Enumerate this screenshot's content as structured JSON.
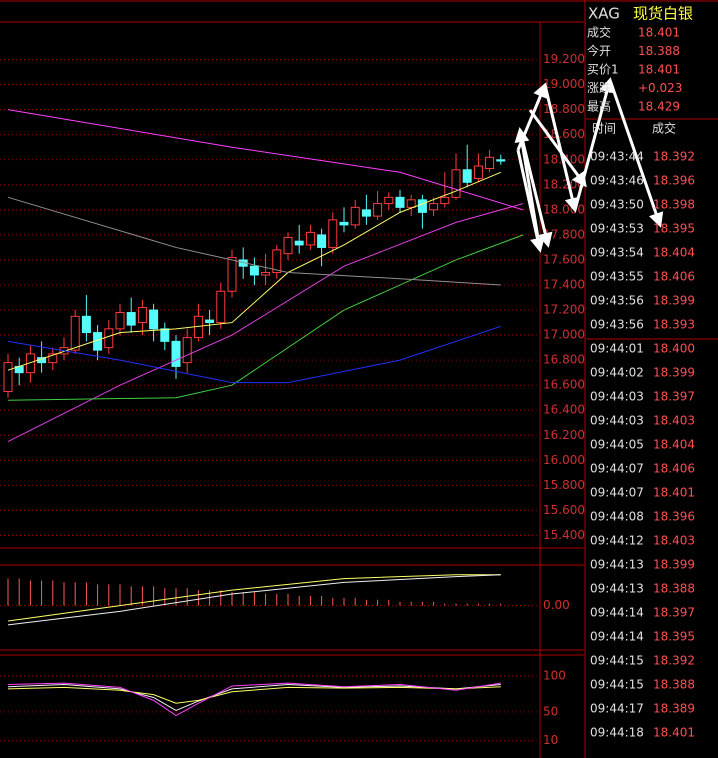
{
  "header": {
    "symbol": "XAG",
    "name": "现货白银"
  },
  "quote": [
    {
      "label": "成交",
      "value": "18.401"
    },
    {
      "label": "今开",
      "value": "18.388"
    },
    {
      "label": "买价1",
      "value": "18.401"
    },
    {
      "label": "涨跌",
      "value": "+0.023"
    },
    {
      "label": "最高",
      "value": "18.429"
    }
  ],
  "trades_header": [
    "时间",
    "成交"
  ],
  "trades": [
    [
      "09:43:44",
      "18.392"
    ],
    [
      "09:43:46",
      "18.396"
    ],
    [
      "09:43:50",
      "18.398"
    ],
    [
      "09:43:53",
      "18.395"
    ],
    [
      "09:43:54",
      "18.404"
    ],
    [
      "09:43:55",
      "18.406"
    ],
    [
      "09:43:56",
      "18.399"
    ],
    [
      "09:43:56",
      "18.393"
    ],
    [
      "09:44:01",
      "18.400"
    ],
    [
      "09:44:02",
      "18.399"
    ],
    [
      "09:44:03",
      "18.397"
    ],
    [
      "09:44:03",
      "18.403"
    ],
    [
      "09:44:05",
      "18.404"
    ],
    [
      "09:44:07",
      "18.406"
    ],
    [
      "09:44:07",
      "18.401"
    ],
    [
      "09:44:08",
      "18.396"
    ],
    [
      "09:44:12",
      "18.403"
    ],
    [
      "09:44:13",
      "18.399"
    ],
    [
      "09:44:13",
      "18.388"
    ],
    [
      "09:44:14",
      "18.397"
    ],
    [
      "09:44:14",
      "18.395"
    ],
    [
      "09:44:15",
      "18.392"
    ],
    [
      "09:44:15",
      "18.388"
    ],
    [
      "09:44:17",
      "18.389"
    ],
    [
      "09:44:18",
      "18.401"
    ]
  ],
  "chart_data": [
    {
      "type": "candlestick",
      "up_color": "#ff3c3c",
      "down_color": "#54fcfc",
      "ylim": [
        15.3,
        19.5
      ],
      "grid": true,
      "yticks": [
        {
          "value": 19.2,
          "label": "19.200"
        },
        {
          "value": 19.0,
          "label": "19.000"
        },
        {
          "value": 18.8,
          "label": "18.800"
        },
        {
          "value": 18.6,
          "label": "18.600"
        },
        {
          "value": 18.4,
          "label": "18.400"
        },
        {
          "value": 18.2,
          "label": "18.200"
        },
        {
          "value": 18.0,
          "label": "18.000"
        },
        {
          "value": 17.8,
          "label": "17.800"
        },
        {
          "value": 17.6,
          "label": "17.600"
        },
        {
          "value": 17.4,
          "label": "17.400"
        },
        {
          "value": 17.2,
          "label": "17.200"
        },
        {
          "value": 17.0,
          "label": "17.000"
        },
        {
          "value": 16.8,
          "label": "16.800"
        },
        {
          "value": 16.6,
          "label": "16.600"
        },
        {
          "value": 16.4,
          "label": "16.400"
        },
        {
          "value": 16.2,
          "label": "16.200"
        },
        {
          "value": 16.0,
          "label": "16.000"
        },
        {
          "value": 15.8,
          "label": "15.800"
        },
        {
          "value": 15.6,
          "label": "15.600"
        },
        {
          "value": 15.4,
          "label": "15.400"
        }
      ],
      "open": [
        16.55,
        16.75,
        16.7,
        16.82,
        16.78,
        16.85,
        16.88,
        17.15,
        17.02,
        16.9,
        17.05,
        17.18,
        17.1,
        17.2,
        17.05,
        16.95,
        16.78,
        16.98,
        17.12,
        17.1,
        17.35,
        17.6,
        17.55,
        17.48,
        17.5,
        17.65,
        17.75,
        17.72,
        17.8,
        17.7,
        17.9,
        17.88,
        18.0,
        17.95,
        18.05,
        18.1,
        18.02,
        18.08,
        18.0,
        18.05,
        18.1,
        18.32,
        18.25,
        18.33,
        18.4
      ],
      "close": [
        16.78,
        16.7,
        16.85,
        16.78,
        16.85,
        16.9,
        17.15,
        17.02,
        16.88,
        17.05,
        17.18,
        17.08,
        17.22,
        17.05,
        16.95,
        16.75,
        16.98,
        17.15,
        17.1,
        17.35,
        17.62,
        17.55,
        17.48,
        17.5,
        17.68,
        17.78,
        17.72,
        17.82,
        17.7,
        17.92,
        17.88,
        18.02,
        17.95,
        18.05,
        18.1,
        18.02,
        18.08,
        17.98,
        18.05,
        18.1,
        18.32,
        18.22,
        18.35,
        18.42,
        18.39
      ],
      "high": [
        16.85,
        16.82,
        16.92,
        16.95,
        16.9,
        16.98,
        17.2,
        17.32,
        17.08,
        17.12,
        17.25,
        17.3,
        17.28,
        17.25,
        17.1,
        17.0,
        17.05,
        17.25,
        17.2,
        17.42,
        17.68,
        17.7,
        17.62,
        17.65,
        17.72,
        17.82,
        17.88,
        17.88,
        17.85,
        17.98,
        18.02,
        18.08,
        18.12,
        18.15,
        18.14,
        18.16,
        18.12,
        18.12,
        18.1,
        18.3,
        18.45,
        18.52,
        18.45,
        18.48,
        18.44
      ],
      "low": [
        16.5,
        16.6,
        16.62,
        16.7,
        16.72,
        16.8,
        16.85,
        16.95,
        16.8,
        16.85,
        17.0,
        17.02,
        17.0,
        16.95,
        16.88,
        16.65,
        16.7,
        16.95,
        17.0,
        17.05,
        17.3,
        17.45,
        17.4,
        17.4,
        17.45,
        17.6,
        17.65,
        17.68,
        17.55,
        17.65,
        17.82,
        17.85,
        17.88,
        17.92,
        18.0,
        17.98,
        17.95,
        17.85,
        17.95,
        18.02,
        18.08,
        18.18,
        18.22,
        18.3,
        18.36
      ],
      "series": [
        {
          "color": "#ffff66",
          "x": [
            0,
            10,
            15,
            20,
            25,
            30,
            35,
            40,
            44
          ],
          "values": [
            16.72,
            17.02,
            17.05,
            17.1,
            17.5,
            17.72,
            17.98,
            18.15,
            18.3
          ]
        },
        {
          "color": "#e040e0",
          "x": [
            0,
            10,
            20,
            30,
            40,
            46
          ],
          "values": [
            16.15,
            16.6,
            17.0,
            17.55,
            17.9,
            18.05
          ]
        },
        {
          "color": "#40d040",
          "x": [
            0,
            15,
            20,
            30,
            40,
            46
          ],
          "values": [
            16.48,
            16.5,
            16.6,
            17.2,
            17.6,
            17.8
          ]
        },
        {
          "color": "#2030ff",
          "x": [
            0,
            10,
            20,
            25,
            35,
            44
          ],
          "values": [
            16.95,
            16.8,
            16.62,
            16.62,
            16.8,
            17.07
          ]
        },
        {
          "color": "#909090",
          "x": [
            0,
            15,
            25,
            35,
            44
          ],
          "values": [
            18.1,
            17.7,
            17.5,
            17.45,
            17.4
          ]
        },
        {
          "color": "#ff40ff",
          "x": [
            0,
            20,
            35,
            46
          ],
          "values": [
            18.8,
            18.5,
            18.3,
            18.0
          ]
        }
      ]
    },
    {
      "type": "macd",
      "ylim": [
        -0.22,
        0.2
      ],
      "yticks": [
        {
          "value": 0,
          "label": "0.00"
        }
      ],
      "bar_color": "#ff5a5a",
      "bars": [
        0.14,
        0.14,
        0.13,
        0.13,
        0.13,
        0.12,
        0.12,
        0.12,
        0.11,
        0.11,
        0.11,
        0.1,
        0.1,
        0.1,
        0.09,
        0.09,
        0.09,
        0.08,
        0.08,
        0.08,
        0.07,
        0.07,
        0.07,
        0.06,
        0.06,
        0.06,
        0.05,
        0.05,
        0.05,
        0.04,
        0.04,
        0.04,
        0.03,
        0.03,
        0.03,
        0.02,
        0.02,
        0.02,
        0.02,
        0.01,
        0.01,
        0.01,
        0.01,
        0.01,
        0.01
      ],
      "series": [
        {
          "color": "#ffff66",
          "x": [
            0,
            10,
            20,
            30,
            40,
            44
          ],
          "values": [
            -0.08,
            0.0,
            0.08,
            0.14,
            0.16,
            0.16
          ]
        },
        {
          "color": "#f0f0f0",
          "x": [
            0,
            10,
            20,
            30,
            40,
            44
          ],
          "values": [
            -0.1,
            -0.03,
            0.06,
            0.12,
            0.15,
            0.16
          ]
        }
      ]
    },
    {
      "type": "kdj",
      "ylim": [
        -14,
        129
      ],
      "yticks": [
        100,
        50,
        10
      ],
      "series": [
        {
          "color": "#f0f0f0",
          "x": [
            0,
            5,
            10,
            13,
            15,
            17,
            20,
            25,
            30,
            35,
            40,
            44
          ],
          "values": [
            85,
            88,
            82,
            70,
            52,
            65,
            82,
            88,
            84,
            86,
            82,
            88
          ]
        },
        {
          "color": "#ffff66",
          "x": [
            0,
            5,
            10,
            13,
            15,
            17,
            20,
            25,
            30,
            35,
            40,
            44
          ],
          "values": [
            82,
            84,
            80,
            74,
            62,
            66,
            78,
            84,
            83,
            84,
            82,
            85
          ]
        },
        {
          "color": "#ff40ff",
          "x": [
            0,
            5,
            10,
            13,
            15,
            17,
            20,
            25,
            30,
            35,
            40,
            44
          ],
          "values": [
            88,
            90,
            84,
            66,
            45,
            62,
            86,
            90,
            85,
            88,
            80,
            90
          ]
        }
      ]
    }
  ]
}
